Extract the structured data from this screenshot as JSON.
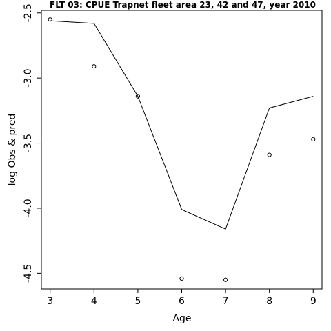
{
  "chart_data": {
    "type": "line",
    "title": "FLT 03: CPUE Trapnet fleet area 23, 42 and 47, year 2010",
    "xlabel": "Age",
    "ylabel": "log Obs & pred",
    "x": [
      3,
      4,
      5,
      6,
      7,
      8,
      9
    ],
    "series": [
      {
        "style": "line",
        "values": [
          -2.56,
          -2.58,
          -3.14,
          -4.01,
          -4.16,
          -3.23,
          -3.14
        ]
      },
      {
        "style": "points",
        "values": [
          -2.55,
          -2.91,
          -3.14,
          -4.54,
          -4.55,
          -3.59,
          -3.47
        ]
      }
    ],
    "xlim": [
      2.8,
      9.2
    ],
    "ylim": [
      -4.62,
      -2.48
    ],
    "xticks": [
      3,
      4,
      5,
      6,
      7,
      8,
      9
    ],
    "yticks": [
      -2.5,
      -3.0,
      -3.5,
      -4.0,
      -4.5
    ],
    "ytick_labels": [
      "-2.5",
      "-3.0",
      "-3.5",
      "-4.0",
      "-4.5"
    ],
    "grid": false,
    "colors": {
      "line": "#000000",
      "points": "#000000"
    }
  }
}
